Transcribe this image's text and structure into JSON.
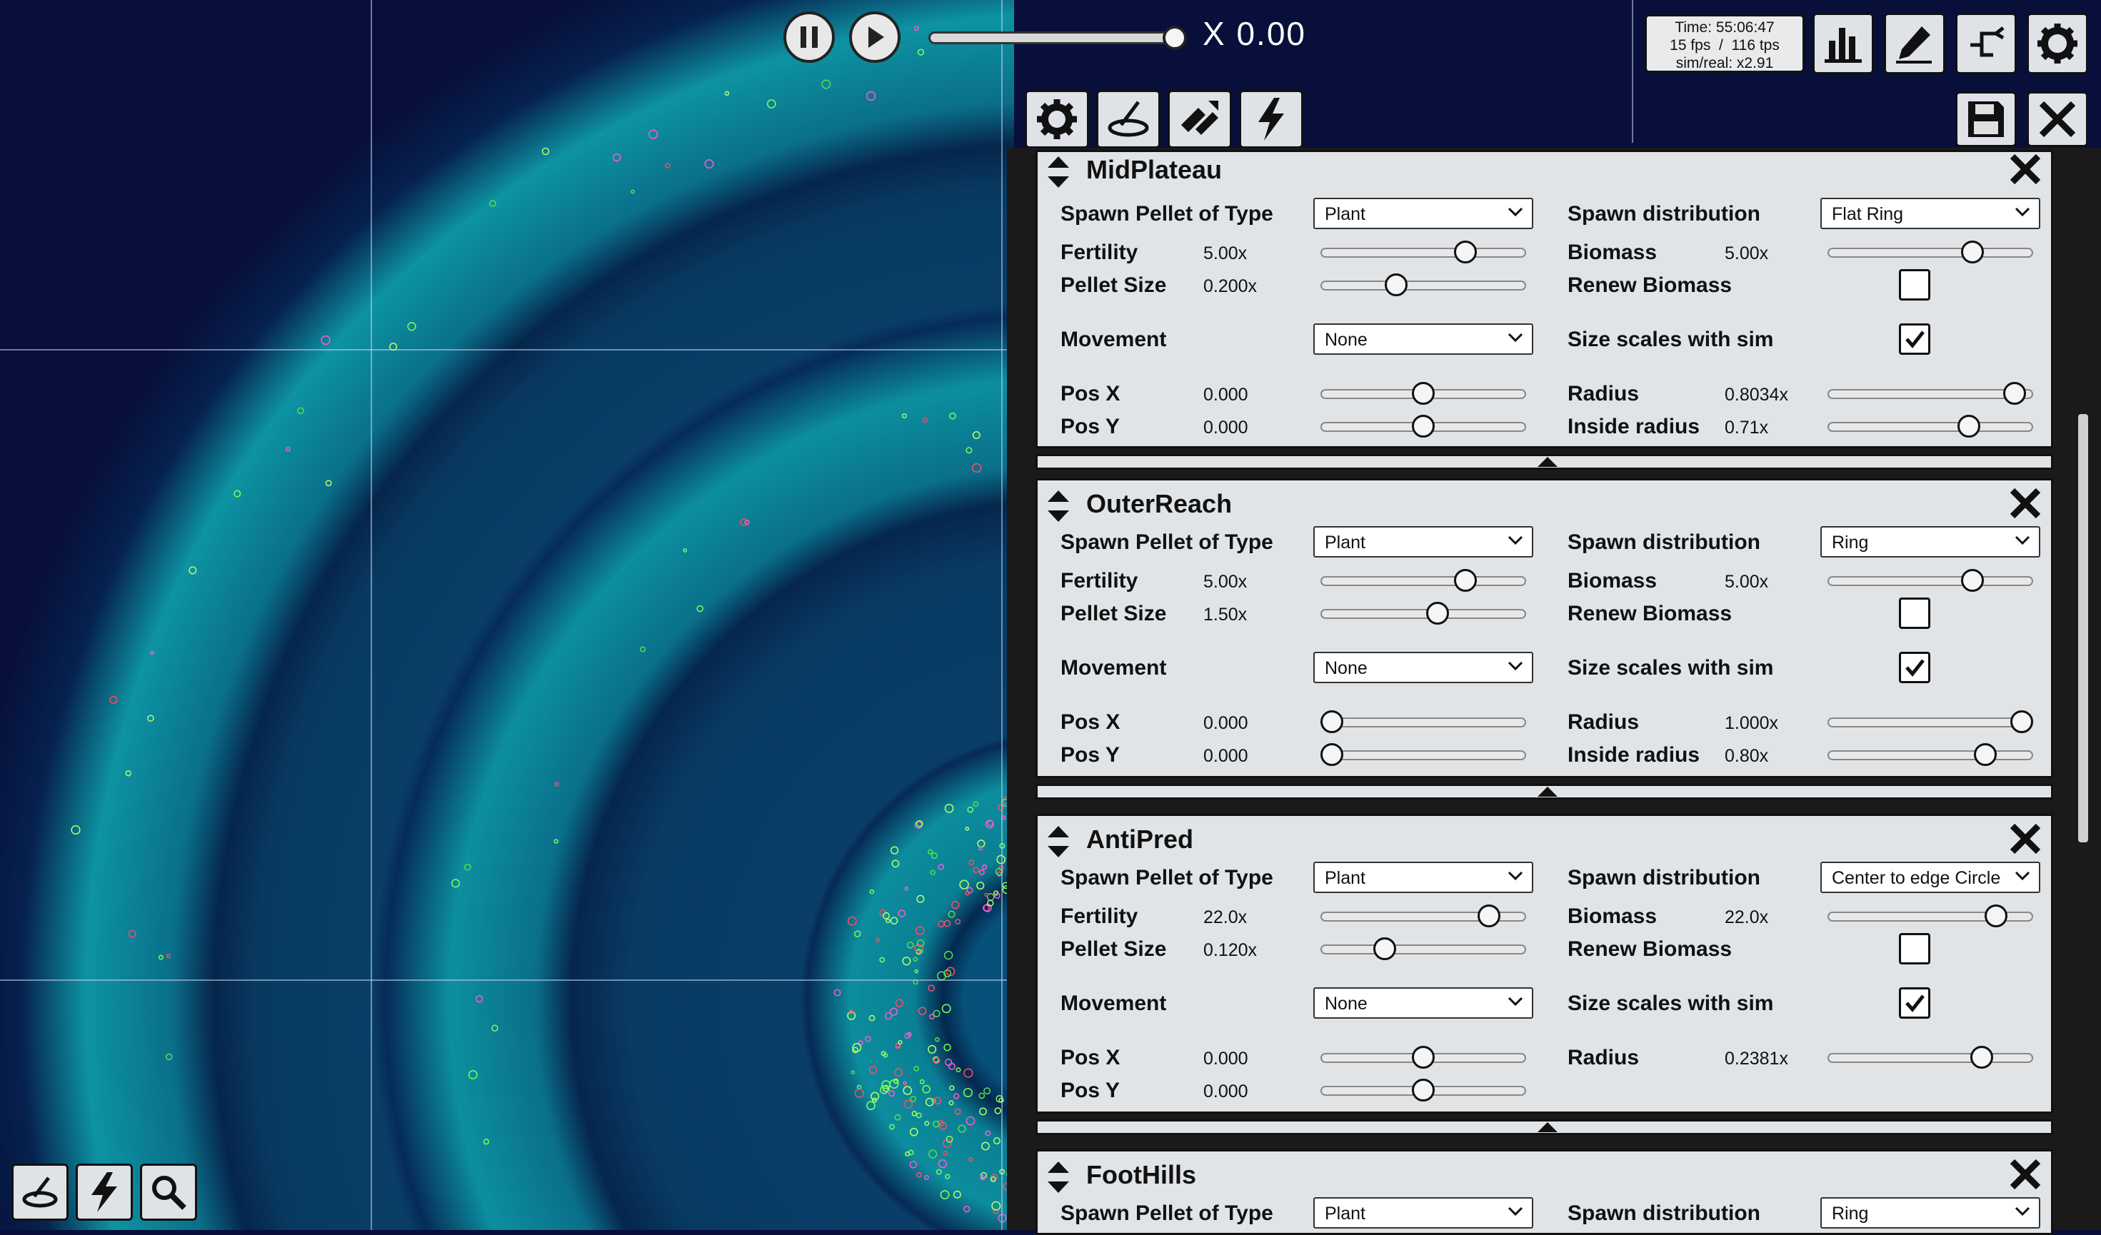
{
  "toolbar": {
    "speed_label": "X 0.00",
    "stats": {
      "time": "Time: 55:06:47",
      "rate": "15 fps  /  116 tps",
      "simreal": "sim/real: x2.91"
    }
  },
  "icons": {
    "pause": "pause-icon",
    "play": "play-icon",
    "chart": "bar-chart-icon",
    "edit": "pencil-icon",
    "tree": "phylo-tree-icon",
    "settings": "gear-icon",
    "save": "floppy-disk-icon",
    "tools": "crossed-tools-icon",
    "petri": "petri-dish-icon",
    "swap": "arrows-swap-icon",
    "bolt": "lightning-icon",
    "zoom": "magnifier-icon"
  },
  "labels": {
    "spawn_type": "Spawn Pellet of Type",
    "spawn_dist": "Spawn distribution",
    "fertility": "Fertility",
    "biomass": "Biomass",
    "pellet_size": "Pellet Size",
    "renew": "Renew Biomass",
    "movement": "Movement",
    "scales": "Size scales with sim",
    "posx": "Pos X",
    "posy": "Pos Y",
    "radius": "Radius",
    "inside": "Inside radius"
  },
  "cards": [
    {
      "title": "MidPlateau",
      "spawn_type": "Plant",
      "spawn_dist": "Flat Ring",
      "fertility": "5.00x",
      "fertility_level": 0.73,
      "biomass": "5.00x",
      "biomass_level": 0.73,
      "pellet_size": "0.200x",
      "pellet_level": 0.35,
      "renew": false,
      "movement": "None",
      "scales": true,
      "posx": "0.000",
      "posx_level": 0.5,
      "posy": "0.000",
      "posy_level": 0.5,
      "radius": "0.8034x",
      "radius_level": 0.96,
      "inside": "0.71x",
      "inside_level": 0.71
    },
    {
      "title": "OuterReach",
      "spawn_type": "Plant",
      "spawn_dist": "Ring",
      "fertility": "5.00x",
      "fertility_level": 0.73,
      "biomass": "5.00x",
      "biomass_level": 0.73,
      "pellet_size": "1.50x",
      "pellet_level": 0.58,
      "renew": false,
      "movement": "None",
      "scales": true,
      "posx": "0.000",
      "posx_level": 0.0,
      "posy": "0.000",
      "posy_level": 0.0,
      "radius": "1.000x",
      "radius_level": 1.0,
      "inside": "0.80x",
      "inside_level": 0.8
    },
    {
      "title": "AntiPred",
      "spawn_type": "Plant",
      "spawn_dist": "Center to edge Circle",
      "fertility": "22.0x",
      "fertility_level": 0.86,
      "biomass": "22.0x",
      "biomass_level": 0.86,
      "pellet_size": "0.120x",
      "pellet_level": 0.29,
      "renew": false,
      "movement": "None",
      "scales": true,
      "posx": "0.000",
      "posx_level": 0.5,
      "posy": "0.000",
      "posy_level": 0.5,
      "radius": "0.2381x",
      "radius_level": 0.78
    },
    {
      "title": "FootHills",
      "spawn_type": "Plant",
      "spawn_dist": "Ring"
    }
  ]
}
